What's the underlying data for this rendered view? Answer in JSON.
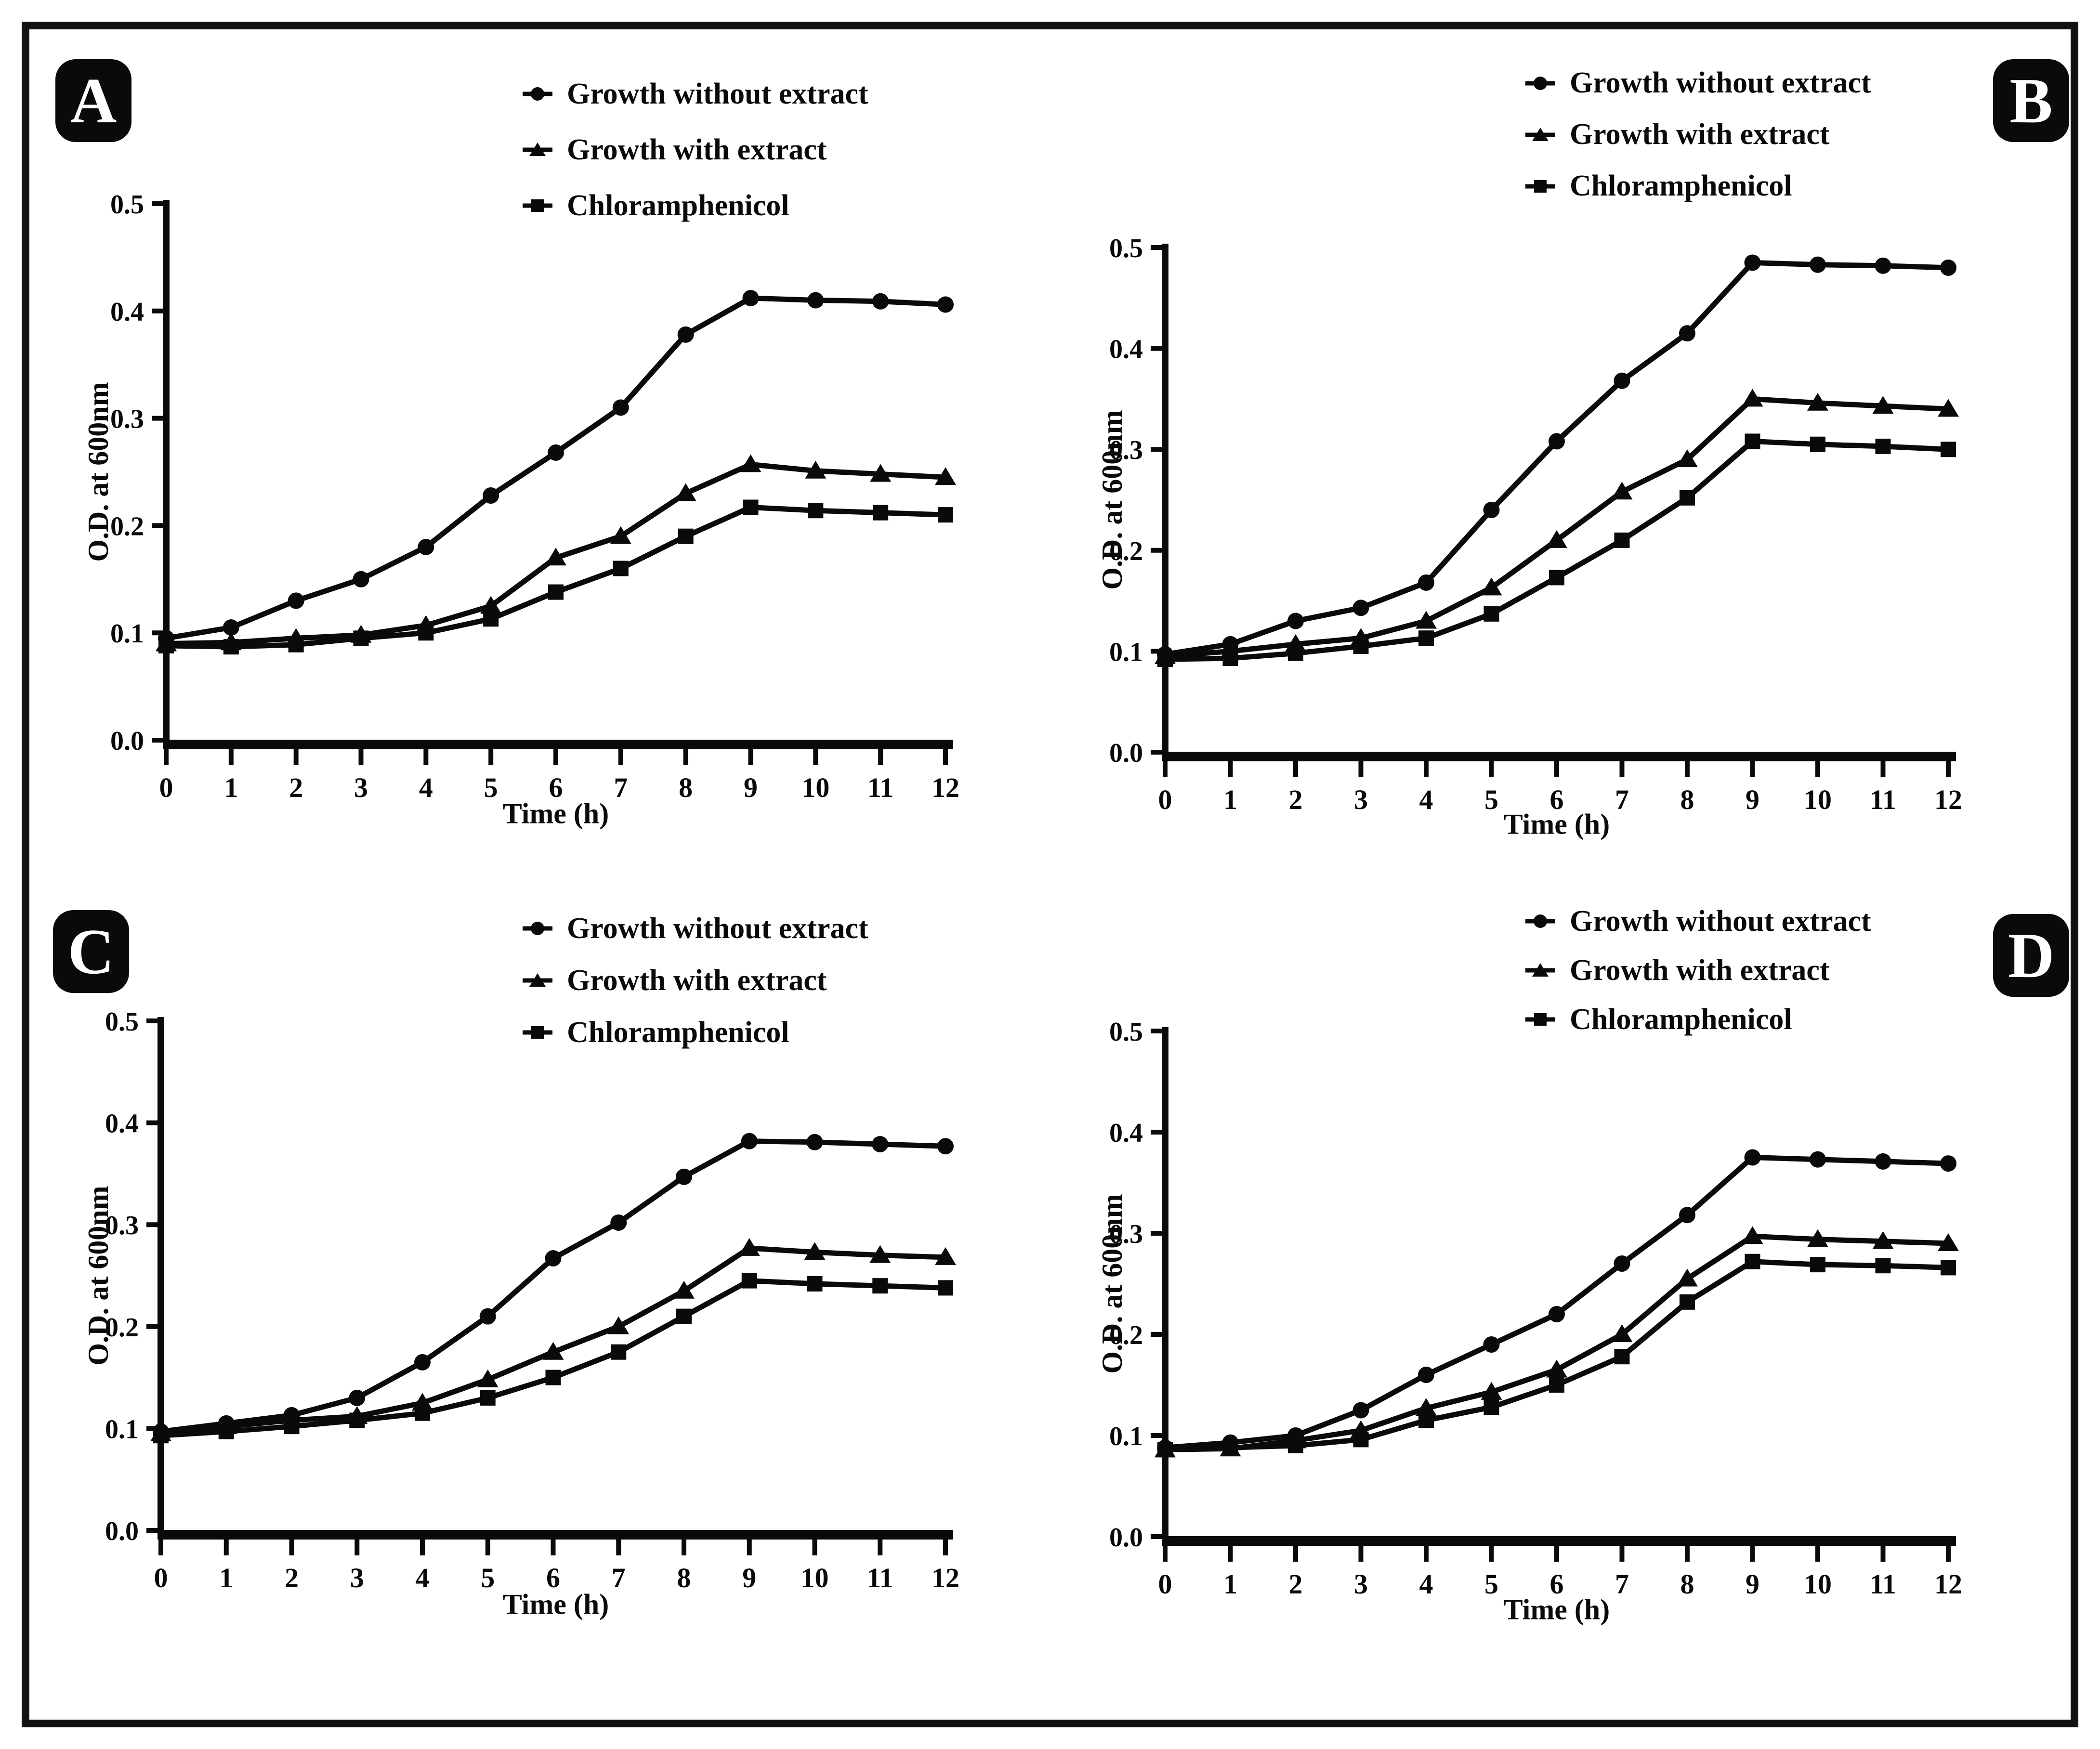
{
  "figure": {
    "panels": [
      {
        "badge": "A"
      },
      {
        "badge": "B"
      },
      {
        "badge": "C"
      },
      {
        "badge": "D"
      }
    ]
  },
  "legend": {
    "items": [
      {
        "label": "Growth without extract",
        "marker": "circle"
      },
      {
        "label": "Growth with extract",
        "marker": "triangle"
      },
      {
        "label": "Chloramphenicol",
        "marker": "square"
      }
    ],
    "position": "top-center"
  },
  "axes": {
    "xlabel": "Time (h)",
    "ylabel": "O.D. at 600nm",
    "xticks": [
      0,
      1,
      2,
      3,
      4,
      5,
      6,
      7,
      8,
      9,
      10,
      11,
      12
    ],
    "yticks": [
      0.0,
      0.1,
      0.2,
      0.3,
      0.4,
      0.5
    ]
  },
  "colors": {
    "line": "#0a0a0a",
    "background": "#ffffff",
    "frame": "#111111",
    "badge_bg": "#0a0a0a",
    "badge_text": "#ffffff"
  },
  "chart_data": [
    {
      "type": "line",
      "panel": "A",
      "xlabel": "Time (h)",
      "ylabel": "O.D. at 600nm",
      "x": [
        0,
        1,
        2,
        3,
        4,
        5,
        6,
        7,
        8,
        9,
        10,
        11,
        12
      ],
      "xlim": [
        0,
        12
      ],
      "ylim": [
        0,
        0.5
      ],
      "yticks": [
        0.0,
        0.1,
        0.2,
        0.3,
        0.4,
        0.5
      ],
      "grid": false,
      "legend_position": "top-center",
      "series": [
        {
          "name": "Growth without extract",
          "marker": "circle",
          "values": [
            0.095,
            0.105,
            0.13,
            0.15,
            0.18,
            0.228,
            0.268,
            0.31,
            0.378,
            0.412,
            0.41,
            0.409,
            0.406
          ]
        },
        {
          "name": "Growth with extract",
          "marker": "triangle",
          "values": [
            0.09,
            0.091,
            0.095,
            0.098,
            0.107,
            0.125,
            0.17,
            0.19,
            0.23,
            0.257,
            0.251,
            0.248,
            0.245
          ]
        },
        {
          "name": "Chloramphenicol",
          "marker": "square",
          "values": [
            0.088,
            0.087,
            0.089,
            0.095,
            0.1,
            0.113,
            0.138,
            0.16,
            0.19,
            0.217,
            0.214,
            0.212,
            0.21
          ]
        }
      ]
    },
    {
      "type": "line",
      "panel": "B",
      "xlabel": "Time (h)",
      "ylabel": "O.D. at 600nm",
      "x": [
        0,
        1,
        2,
        3,
        4,
        5,
        6,
        7,
        8,
        9,
        10,
        11,
        12
      ],
      "xlim": [
        0,
        12
      ],
      "ylim": [
        0,
        0.5
      ],
      "yticks": [
        0.0,
        0.1,
        0.2,
        0.3,
        0.4,
        0.5
      ],
      "grid": false,
      "legend_position": "top-center",
      "series": [
        {
          "name": "Growth without extract",
          "marker": "circle",
          "values": [
            0.097,
            0.107,
            0.13,
            0.143,
            0.168,
            0.24,
            0.308,
            0.368,
            0.415,
            0.485,
            0.483,
            0.482,
            0.48
          ]
        },
        {
          "name": "Growth with extract",
          "marker": "triangle",
          "values": [
            0.095,
            0.1,
            0.107,
            0.113,
            0.13,
            0.163,
            0.21,
            0.258,
            0.29,
            0.35,
            0.346,
            0.343,
            0.34
          ]
        },
        {
          "name": "Chloramphenicol",
          "marker": "square",
          "values": [
            0.092,
            0.093,
            0.098,
            0.105,
            0.113,
            0.137,
            0.173,
            0.21,
            0.252,
            0.308,
            0.305,
            0.303,
            0.3
          ]
        }
      ]
    },
    {
      "type": "line",
      "panel": "C",
      "xlabel": "Time (h)",
      "ylabel": "O.D. at 600nm",
      "x": [
        0,
        1,
        2,
        3,
        4,
        5,
        6,
        7,
        8,
        9,
        10,
        11,
        12
      ],
      "xlim": [
        0,
        12
      ],
      "ylim": [
        0,
        0.5
      ],
      "yticks": [
        0.0,
        0.1,
        0.2,
        0.3,
        0.4,
        0.5
      ],
      "grid": false,
      "legend_position": "top-center",
      "series": [
        {
          "name": "Growth without extract",
          "marker": "circle",
          "values": [
            0.097,
            0.105,
            0.113,
            0.13,
            0.165,
            0.21,
            0.267,
            0.302,
            0.347,
            0.382,
            0.381,
            0.379,
            0.377
          ]
        },
        {
          "name": "Growth with extract",
          "marker": "triangle",
          "values": [
            0.095,
            0.102,
            0.108,
            0.112,
            0.125,
            0.148,
            0.175,
            0.2,
            0.235,
            0.277,
            0.273,
            0.27,
            0.268
          ]
        },
        {
          "name": "Chloramphenicol",
          "marker": "square",
          "values": [
            0.093,
            0.097,
            0.102,
            0.108,
            0.115,
            0.13,
            0.15,
            0.175,
            0.21,
            0.245,
            0.242,
            0.24,
            0.238
          ]
        }
      ]
    },
    {
      "type": "line",
      "panel": "D",
      "xlabel": "Time (h)",
      "ylabel": "O.D. at 600nm",
      "x": [
        0,
        1,
        2,
        3,
        4,
        5,
        6,
        7,
        8,
        9,
        10,
        11,
        12
      ],
      "xlim": [
        0,
        12
      ],
      "ylim": [
        0,
        0.5
      ],
      "yticks": [
        0.0,
        0.1,
        0.2,
        0.3,
        0.4,
        0.5
      ],
      "grid": false,
      "legend_position": "top-center",
      "series": [
        {
          "name": "Growth without extract",
          "marker": "circle",
          "values": [
            0.088,
            0.093,
            0.1,
            0.125,
            0.16,
            0.19,
            0.22,
            0.27,
            0.318,
            0.375,
            0.373,
            0.371,
            0.369
          ]
        },
        {
          "name": "Growth with extract",
          "marker": "triangle",
          "values": [
            0.086,
            0.087,
            0.095,
            0.105,
            0.127,
            0.143,
            0.165,
            0.2,
            0.255,
            0.297,
            0.294,
            0.292,
            0.29
          ]
        },
        {
          "name": "Chloramphenicol",
          "marker": "square",
          "values": [
            0.086,
            0.088,
            0.09,
            0.096,
            0.115,
            0.128,
            0.15,
            0.178,
            0.232,
            0.272,
            0.269,
            0.268,
            0.266
          ]
        }
      ]
    }
  ]
}
